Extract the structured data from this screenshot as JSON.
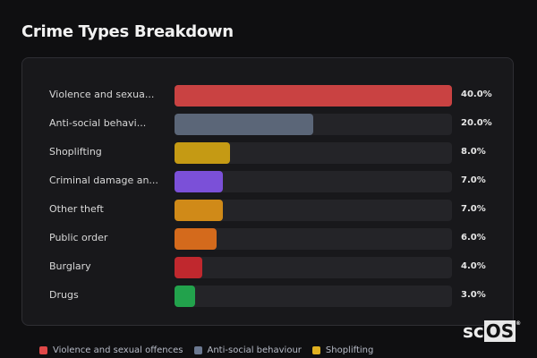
{
  "title": "Crime Types Breakdown",
  "chart_data": {
    "type": "bar",
    "orientation": "horizontal",
    "categories": [
      "Violence and sexua...",
      "Anti-social behavi...",
      "Shoplifting",
      "Criminal damage an...",
      "Other theft",
      "Public order",
      "Burglary",
      "Drugs"
    ],
    "values": [
      40.0,
      20.0,
      8.0,
      7.0,
      7.0,
      6.0,
      4.0,
      3.0
    ],
    "value_labels": [
      "40.0%",
      "20.0%",
      "8.0%",
      "7.0%",
      "7.0%",
      "6.0%",
      "4.0%",
      "3.0%"
    ],
    "colors": [
      "#c94242",
      "#5b6678",
      "#c59a14",
      "#7b50d8",
      "#d08a18",
      "#d46a1c",
      "#c0282e",
      "#22a24c"
    ],
    "xlim": [
      0,
      40
    ],
    "legend": [
      {
        "label": "Violence and sexual offences",
        "color": "#e04848"
      },
      {
        "label": "Anti-social behaviour",
        "color": "#6b7890"
      },
      {
        "label": "Shoplifting",
        "color": "#e0b020"
      }
    ]
  },
  "logo": {
    "text_a": "sc",
    "text_b": "OS",
    "mark": "®"
  }
}
